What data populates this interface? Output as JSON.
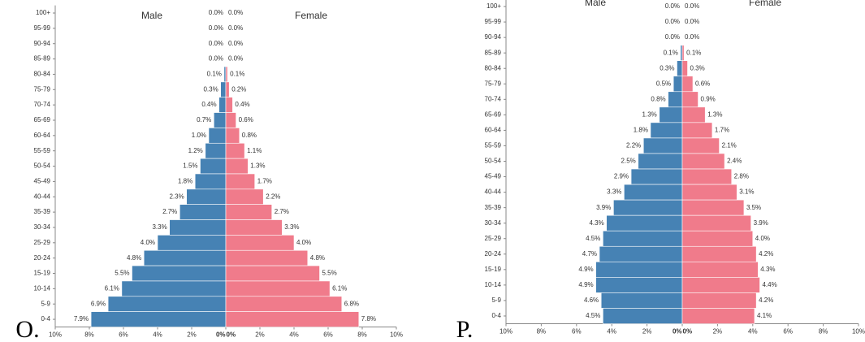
{
  "chart_data": [
    {
      "type": "pyramid",
      "panel_label": "O.",
      "categories": [
        "100+",
        "95-99",
        "90-94",
        "85-89",
        "80-84",
        "75-79",
        "70-74",
        "65-69",
        "60-64",
        "55-59",
        "50-54",
        "45-49",
        "40-44",
        "35-39",
        "30-34",
        "25-29",
        "20-24",
        "15-19",
        "10-14",
        "5-9",
        "0-4"
      ],
      "series": [
        {
          "name": "Male",
          "color": "#4682b4",
          "values": [
            0.0,
            0.0,
            0.0,
            0.0,
            0.1,
            0.3,
            0.4,
            0.7,
            1.0,
            1.2,
            1.5,
            1.8,
            2.3,
            2.7,
            3.3,
            4.0,
            4.8,
            5.5,
            6.1,
            6.9,
            7.9
          ],
          "value_labels": [
            "0.0%",
            "0.0%",
            "0.0%",
            "0.0%",
            "0.1%",
            "0.3%",
            "0.4%",
            "0.7%",
            "1.0%",
            "1.2%",
            "1.5%",
            "1.8%",
            "2.3%",
            "2.7%",
            "3.3%",
            "4.0%",
            "4.8%",
            "5.5%",
            "6.1%",
            "6.9%",
            "7.9%"
          ]
        },
        {
          "name": "Female",
          "color": "#f07b8b",
          "values": [
            0.0,
            0.0,
            0.0,
            0.0,
            0.1,
            0.2,
            0.4,
            0.6,
            0.8,
            1.1,
            1.3,
            1.7,
            2.2,
            2.7,
            3.3,
            4.0,
            4.8,
            5.5,
            6.1,
            6.8,
            7.8
          ],
          "value_labels": [
            "0.0%",
            "0.0%",
            "0.0%",
            "0.0%",
            "0.1%",
            "0.2%",
            "0.4%",
            "0.6%",
            "0.8%",
            "1.1%",
            "1.3%",
            "1.7%",
            "2.2%",
            "2.7%",
            "3.3%",
            "4.0%",
            "4.8%",
            "5.5%",
            "6.1%",
            "6.8%",
            "7.8%"
          ]
        }
      ],
      "xlim": [
        0,
        10
      ],
      "xticks_left": [
        {
          "value": 10,
          "label": "10%"
        },
        {
          "value": 8,
          "label": "8%"
        },
        {
          "value": 6,
          "label": "6%"
        },
        {
          "value": 4,
          "label": "4%"
        },
        {
          "value": 2,
          "label": "2%"
        },
        {
          "value": 0,
          "label": "0%"
        }
      ],
      "xticks_right": [
        {
          "value": 0,
          "label": "0%"
        },
        {
          "value": 2,
          "label": "2%"
        },
        {
          "value": 4,
          "label": "4%"
        },
        {
          "value": 6,
          "label": "6%"
        },
        {
          "value": 8,
          "label": "8%"
        },
        {
          "value": 10,
          "label": "10%"
        }
      ]
    },
    {
      "type": "pyramid",
      "panel_label": "P.",
      "categories": [
        "100+",
        "95-99",
        "90-94",
        "85-89",
        "80-84",
        "75-79",
        "70-74",
        "65-69",
        "60-64",
        "55-59",
        "50-54",
        "45-49",
        "40-44",
        "35-39",
        "30-34",
        "25-29",
        "20-24",
        "15-19",
        "10-14",
        "5-9",
        "0-4"
      ],
      "series": [
        {
          "name": "Male",
          "color": "#4682b4",
          "values": [
            0.0,
            0.0,
            0.0,
            0.1,
            0.3,
            0.5,
            0.8,
            1.3,
            1.8,
            2.2,
            2.5,
            2.9,
            3.3,
            3.9,
            4.3,
            4.5,
            4.7,
            4.9,
            4.9,
            4.6,
            4.5
          ],
          "value_labels": [
            "0.0%",
            "0.0%",
            "0.0%",
            "0.1%",
            "0.3%",
            "0.5%",
            "0.8%",
            "1.3%",
            "1.8%",
            "2.2%",
            "2.5%",
            "2.9%",
            "3.3%",
            "3.9%",
            "4.3%",
            "4.5%",
            "4.7%",
            "4.9%",
            "4.9%",
            "4.6%",
            "4.5%"
          ]
        },
        {
          "name": "Female",
          "color": "#f07b8b",
          "values": [
            0.0,
            0.0,
            0.0,
            0.1,
            0.3,
            0.6,
            0.9,
            1.3,
            1.7,
            2.1,
            2.4,
            2.8,
            3.1,
            3.5,
            3.9,
            4.0,
            4.2,
            4.3,
            4.4,
            4.2,
            4.1
          ],
          "value_labels": [
            "0.0%",
            "0.0%",
            "0.0%",
            "0.1%",
            "0.3%",
            "0.6%",
            "0.9%",
            "1.3%",
            "1.7%",
            "2.1%",
            "2.4%",
            "2.8%",
            "3.1%",
            "3.5%",
            "3.9%",
            "4.0%",
            "4.2%",
            "4.3%",
            "4.4%",
            "4.2%",
            "4.1%"
          ]
        }
      ],
      "xlim": [
        0,
        10
      ],
      "xticks_left": [
        {
          "value": 10,
          "label": "10%"
        },
        {
          "value": 8,
          "label": "8%"
        },
        {
          "value": 6,
          "label": "6%"
        },
        {
          "value": 4,
          "label": "4%"
        },
        {
          "value": 2,
          "label": "2%"
        },
        {
          "value": 0,
          "label": "0%"
        }
      ],
      "xticks_right": [
        {
          "value": 0,
          "label": "0%"
        },
        {
          "value": 2,
          "label": "2%"
        },
        {
          "value": 4,
          "label": "4%"
        },
        {
          "value": 6,
          "label": "6%"
        },
        {
          "value": 8,
          "label": "8%"
        },
        {
          "value": 10,
          "label": "10%"
        }
      ]
    }
  ]
}
